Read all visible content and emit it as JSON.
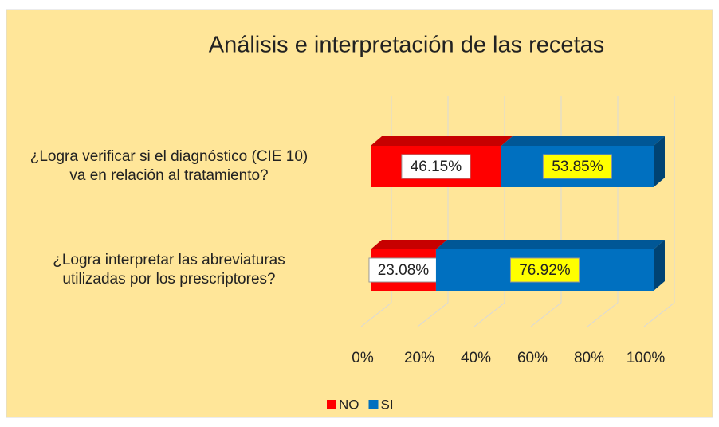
{
  "chart_data": {
    "type": "bar3d",
    "orientation": "horizontal",
    "stacked": true,
    "title": "Análisis e interpretación de las recetas",
    "categories": [
      "¿Logra verificar si el diagnóstico (CIE 10)\nva en relación al tratamiento?",
      "¿Logra interpretar las abreviaturas\nutilizadas por los prescriptores?"
    ],
    "series": [
      {
        "name": "NO",
        "color": "#FF0000",
        "values": [
          46.15,
          23.08
        ],
        "value_labels": [
          "46.15%",
          "23.08%"
        ]
      },
      {
        "name": "SI",
        "color": "#0070C0",
        "values": [
          53.85,
          76.92
        ],
        "value_labels": [
          "53.85%",
          "76.92%"
        ]
      }
    ],
    "xlim": [
      0,
      100
    ],
    "xticks": [
      {
        "value": 0,
        "label": "0%"
      },
      {
        "value": 20,
        "label": "20%"
      },
      {
        "value": 40,
        "label": "40%"
      },
      {
        "value": 60,
        "label": "60%"
      },
      {
        "value": 80,
        "label": "80%"
      },
      {
        "value": 100,
        "label": "100%"
      }
    ],
    "grid": true,
    "legend": "bottom"
  }
}
